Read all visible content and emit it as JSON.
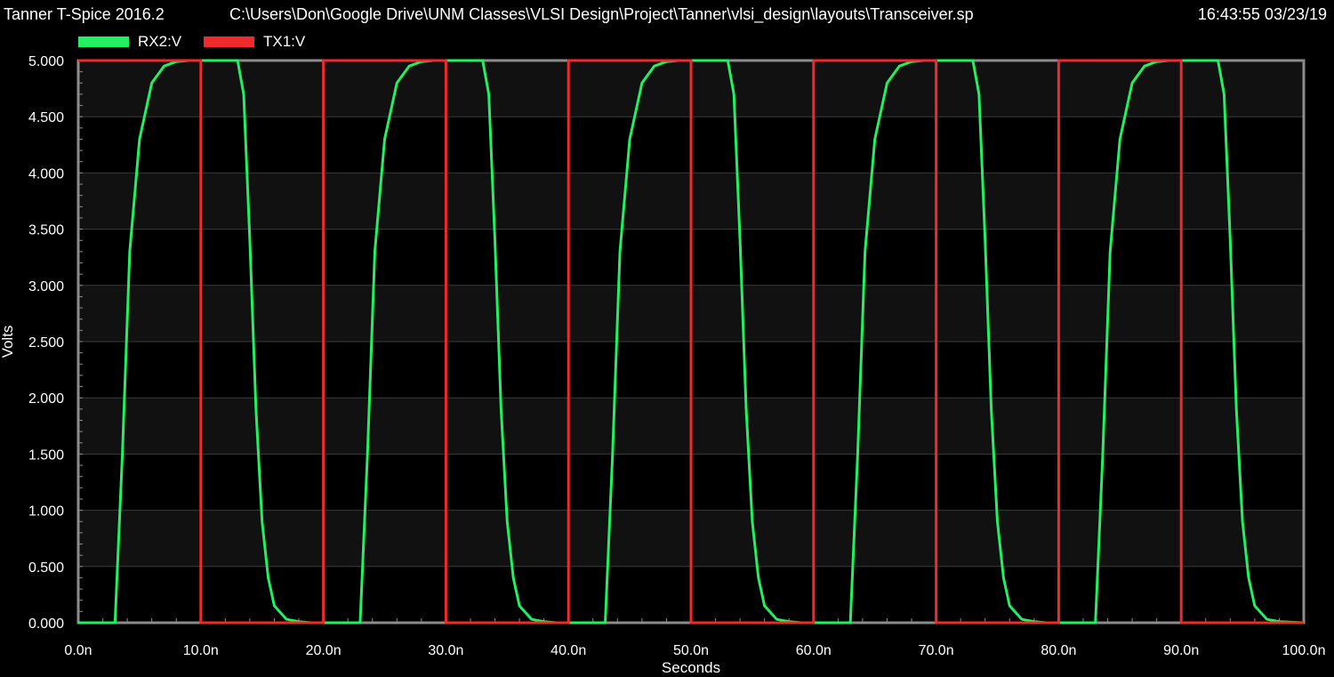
{
  "header": {
    "app_title": "Tanner T-Spice 2016.2",
    "file_path": "C:\\Users\\Don\\Google Drive\\UNM Classes\\VLSI Design\\Project\\Tanner\\vlsi_design\\layouts\\Transceiver.sp",
    "timestamp": "16:43:55 03/23/19"
  },
  "colors": {
    "background": "#000000",
    "plot_band": "#111111",
    "grid": "#3a3a3a",
    "frame": "#8c8c8c",
    "rx2": "#22f060",
    "tx1": "#ee2a2a"
  },
  "chart_data": {
    "type": "line",
    "xlabel": "Seconds",
    "ylabel": "Volts",
    "xlim": [
      0,
      100
    ],
    "ylim": [
      0,
      5
    ],
    "x_unit": "ns",
    "x_ticks": [
      "0.0n",
      "10.0n",
      "20.0n",
      "30.0n",
      "40.0n",
      "50.0n",
      "60.0n",
      "70.0n",
      "80.0n",
      "90.0n",
      "100.0n"
    ],
    "y_ticks": [
      "0.000",
      "0.500",
      "1.000",
      "1.500",
      "2.000",
      "2.500",
      "3.000",
      "3.500",
      "4.000",
      "4.500",
      "5.000"
    ],
    "legend_position": "top-left",
    "grid": true,
    "series": [
      {
        "name": "RX2:V",
        "color": "#22f060",
        "x": [
          0,
          3,
          3.6,
          4.2,
          5.0,
          6.0,
          7.0,
          8.0,
          9.0,
          13.0,
          13.5,
          14.0,
          14.5,
          15.0,
          15.5,
          16.0,
          17.0,
          18.0,
          19.0,
          23,
          23.6,
          24.2,
          25.0,
          26.0,
          27.0,
          28.0,
          29.0,
          33.0,
          33.5,
          34.0,
          34.5,
          35.0,
          35.5,
          36.0,
          37.0,
          38.0,
          39.0,
          43,
          43.6,
          44.2,
          45.0,
          46.0,
          47.0,
          48.0,
          49.0,
          53.0,
          53.5,
          54.0,
          54.5,
          55.0,
          55.5,
          56.0,
          57.0,
          58.0,
          59.0,
          63,
          63.6,
          64.2,
          65.0,
          66.0,
          67.0,
          68.0,
          69.0,
          73.0,
          73.5,
          74.0,
          74.5,
          75.0,
          75.5,
          76.0,
          77.0,
          78.0,
          79.0,
          83,
          83.6,
          84.2,
          85.0,
          86.0,
          87.0,
          88.0,
          89.0,
          93.0,
          93.5,
          94.0,
          94.5,
          95.0,
          95.5,
          96.0,
          97.0,
          98.0,
          100
        ],
        "y": [
          0,
          0,
          1.5,
          3.3,
          4.3,
          4.8,
          4.95,
          4.99,
          5.0,
          5.0,
          4.7,
          3.4,
          1.9,
          0.9,
          0.4,
          0.15,
          0.03,
          0.01,
          0,
          0,
          1.5,
          3.3,
          4.3,
          4.8,
          4.95,
          4.99,
          5.0,
          5.0,
          4.7,
          3.4,
          1.9,
          0.9,
          0.4,
          0.15,
          0.03,
          0.01,
          0,
          0,
          1.5,
          3.3,
          4.3,
          4.8,
          4.95,
          4.99,
          5.0,
          5.0,
          4.7,
          3.4,
          1.9,
          0.9,
          0.4,
          0.15,
          0.03,
          0.01,
          0,
          0,
          1.5,
          3.3,
          4.3,
          4.8,
          4.95,
          4.99,
          5.0,
          5.0,
          4.7,
          3.4,
          1.9,
          0.9,
          0.4,
          0.15,
          0.03,
          0.01,
          0,
          0,
          1.5,
          3.3,
          4.3,
          4.8,
          4.95,
          4.99,
          5.0,
          5.0,
          4.7,
          3.4,
          1.9,
          0.9,
          0.4,
          0.15,
          0.03,
          0.01,
          0
        ]
      },
      {
        "name": "TX1:V",
        "color": "#ee2a2a",
        "x": [
          0,
          10,
          10,
          20,
          20,
          30,
          30,
          40,
          40,
          50,
          50,
          60,
          60,
          70,
          70,
          80,
          80,
          90,
          90,
          100
        ],
        "y": [
          5,
          5,
          0,
          0,
          5,
          5,
          0,
          0,
          5,
          5,
          0,
          0,
          5,
          5,
          0,
          0,
          5,
          5,
          0,
          0
        ]
      }
    ]
  }
}
